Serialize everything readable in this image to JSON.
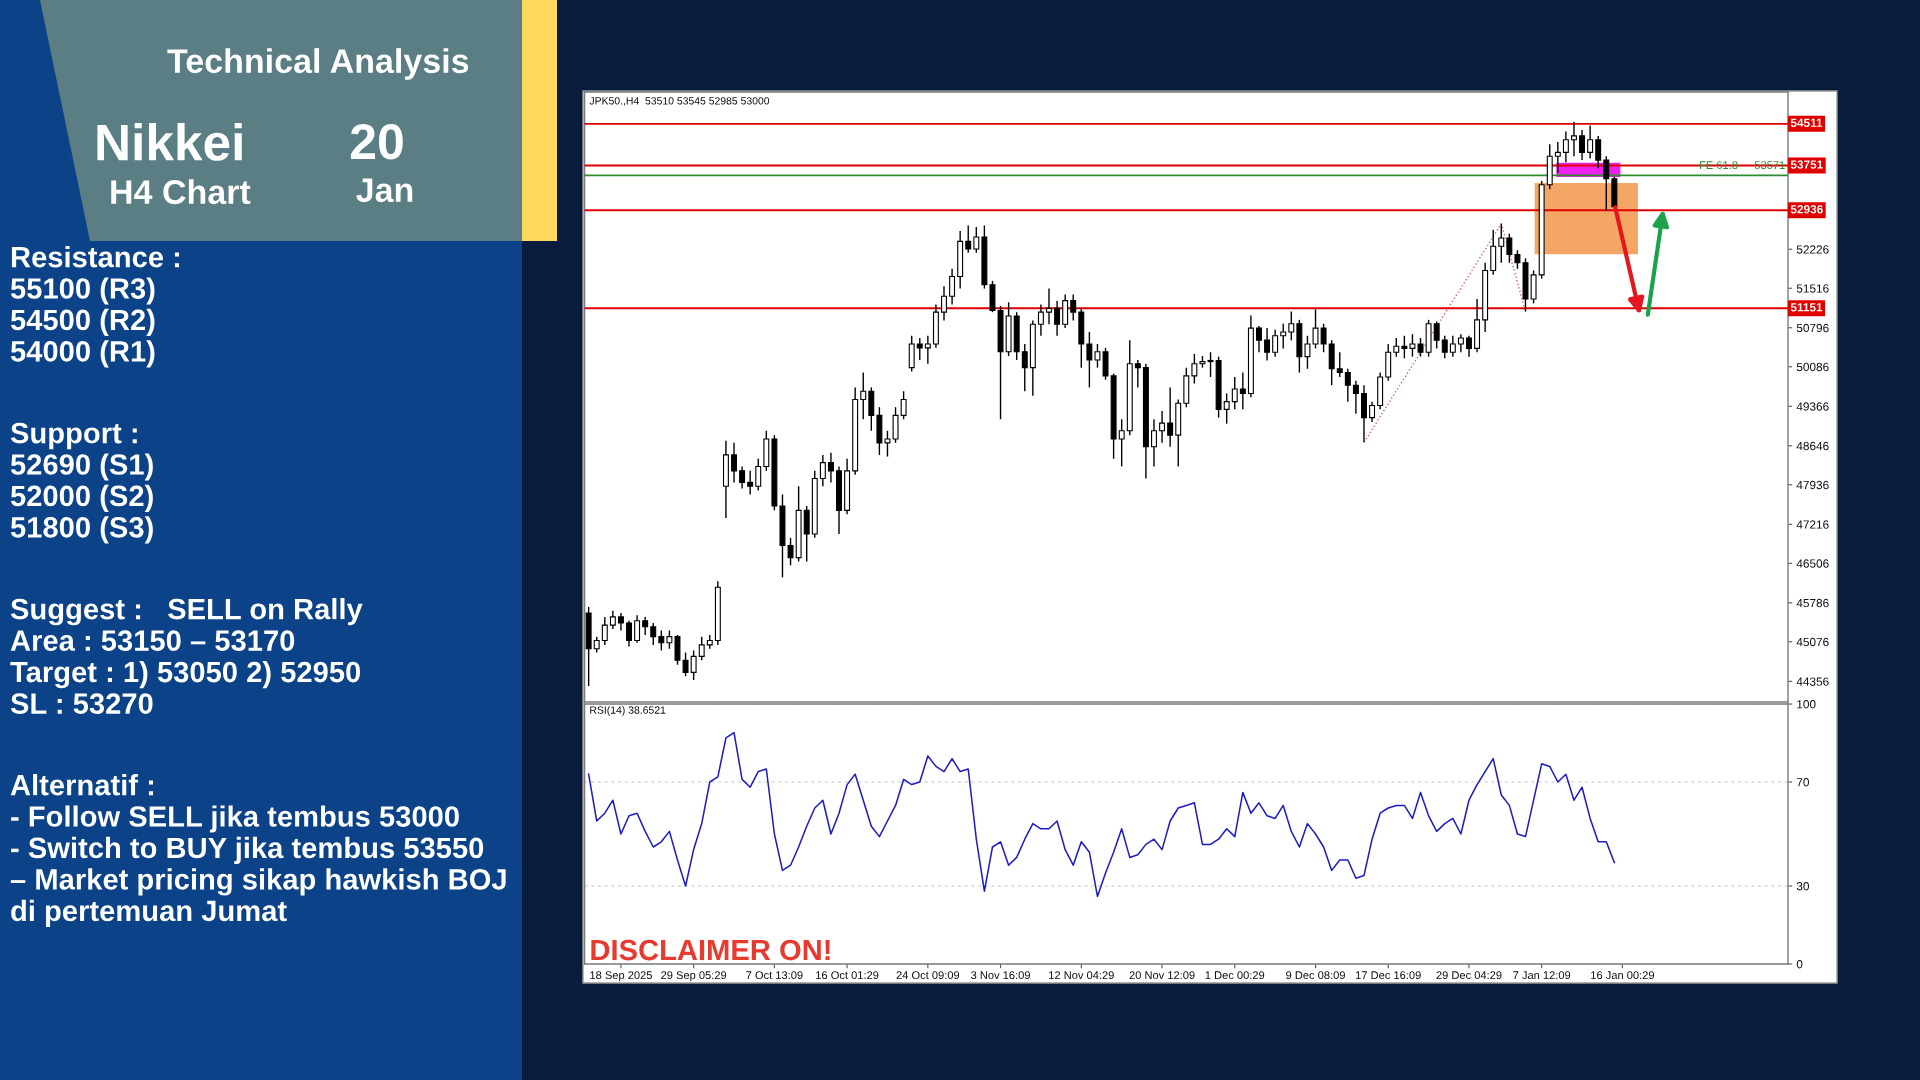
{
  "chart_data": [
    {
      "type": "other",
      "title": "Technical Analysis",
      "annotations": [
        "Nikkei",
        "H4 Chart",
        "20",
        "Jan",
        "Resistance :\n55100 (R3)\n54500 (R2)\n54000 (R1)",
        "Support :\n52690 (S1)\n52000 (S2)\n51800 (S3)",
        "Suggest :   SELL on Rally\nArea : 53150 – 53170\nTarget : 1) 53050 2) 52950\nSL : 53270",
        "Alternatif :\n- Follow SELL jika tembus 53000\n- Switch to BUY jika tembus 53550\n– Market pricing sikap hawkish BOJ\ndi pertemuan Jumat"
      ]
    },
    {
      "type": "candlestick",
      "title": "JPK50.,H4  53510 53545 52985 53000",
      "categories": [
        null,
        null,
        null,
        null,
        null,
        null,
        null,
        null,
        null,
        null,
        null,
        null,
        null,
        null,
        null,
        null,
        null,
        null,
        null,
        null,
        null,
        null,
        null,
        null,
        null,
        null,
        null,
        null,
        null,
        null,
        null,
        null,
        null,
        null,
        null,
        null,
        null,
        null,
        null,
        null,
        null,
        null,
        null,
        null,
        null,
        null,
        null,
        null,
        null,
        null,
        null,
        null,
        null,
        null,
        null,
        null,
        null,
        null,
        null,
        null,
        null,
        null,
        null,
        null,
        null,
        null,
        null,
        null,
        null,
        null,
        null,
        null,
        null,
        null,
        null,
        null,
        null,
        null,
        null,
        null,
        null,
        null,
        null,
        null,
        null,
        null,
        null,
        null,
        null,
        null,
        null,
        null,
        null,
        null,
        null,
        null,
        null,
        null,
        null,
        null,
        null,
        null,
        null,
        null,
        null,
        null,
        null,
        null,
        null,
        null,
        null,
        null,
        null,
        null,
        null,
        null,
        null,
        null,
        null,
        null,
        null,
        null,
        null,
        null,
        null,
        null,
        null,
        null,
        null,
        null,
        null,
        null,
        null,
        null,
        null,
        null,
        null,
        null,
        null,
        null,
        null,
        null,
        null,
        null,
        null,
        null,
        null,
        null,
        null
      ],
      "ohlc": [
        [
          45600,
          45710,
          44270,
          44950
        ],
        [
          44950,
          45170,
          44880,
          45100
        ],
        [
          45100,
          45530,
          45020,
          45380
        ],
        [
          45380,
          45640,
          45310,
          45530
        ],
        [
          45530,
          45600,
          45280,
          45420
        ],
        [
          45420,
          45460,
          44990,
          45100
        ],
        [
          45100,
          45560,
          45060,
          45460
        ],
        [
          45460,
          45530,
          45200,
          45350
        ],
        [
          45350,
          45420,
          45020,
          45170
        ],
        [
          45170,
          45280,
          44920,
          45060
        ],
        [
          45060,
          45280,
          44950,
          45170
        ],
        [
          45170,
          45200,
          44660,
          44740
        ],
        [
          44740,
          44880,
          44450,
          44520
        ],
        [
          44520,
          44920,
          44380,
          44810
        ],
        [
          44810,
          45170,
          44740,
          45020
        ],
        [
          45020,
          45200,
          44950,
          45100
        ],
        [
          45100,
          46180,
          45020,
          46070
        ],
        [
          47910,
          48740,
          47330,
          48480
        ],
        [
          48480,
          48700,
          47980,
          48190
        ],
        [
          48190,
          48270,
          47870,
          47980
        ],
        [
          47980,
          48190,
          47760,
          47910
        ],
        [
          47910,
          48410,
          47830,
          48270
        ],
        [
          48270,
          48920,
          48190,
          48770
        ],
        [
          48770,
          48840,
          47470,
          47550
        ],
        [
          47550,
          47760,
          46250,
          46830
        ],
        [
          46830,
          46970,
          46470,
          46610
        ],
        [
          46610,
          47910,
          46540,
          47470
        ],
        [
          47470,
          47550,
          46540,
          47040
        ],
        [
          47040,
          48190,
          46970,
          48050
        ],
        [
          48050,
          48480,
          47910,
          48340
        ],
        [
          48340,
          48520,
          47980,
          48190
        ],
        [
          48190,
          48270,
          47040,
          47470
        ],
        [
          47470,
          48410,
          47400,
          48190
        ],
        [
          48190,
          49710,
          48120,
          49490
        ],
        [
          49490,
          49980,
          49130,
          49640
        ],
        [
          49640,
          49710,
          48920,
          49200
        ],
        [
          49200,
          49350,
          48480,
          48700
        ],
        [
          48700,
          48920,
          48450,
          48770
        ],
        [
          48770,
          49350,
          48700,
          49200
        ],
        [
          49200,
          49640,
          49130,
          49490
        ],
        [
          50070,
          50650,
          50000,
          50500
        ],
        [
          50500,
          50610,
          50210,
          50430
        ],
        [
          50430,
          50650,
          50140,
          50500
        ],
        [
          50500,
          51220,
          50430,
          51080
        ],
        [
          51080,
          51550,
          50930,
          51370
        ],
        [
          51370,
          51870,
          51220,
          51730
        ],
        [
          51730,
          52560,
          51510,
          52370
        ],
        [
          52370,
          52660,
          52160,
          52230
        ],
        [
          52230,
          52630,
          52160,
          52450
        ],
        [
          52450,
          52660,
          51510,
          51580
        ],
        [
          51580,
          51650,
          51080,
          51110
        ],
        [
          51110,
          51190,
          49130,
          50360
        ],
        [
          50360,
          51260,
          50280,
          51010
        ],
        [
          51010,
          51080,
          50210,
          50360
        ],
        [
          50360,
          50500,
          49640,
          50070
        ],
        [
          50070,
          50930,
          49560,
          50860
        ],
        [
          50860,
          51220,
          50650,
          51080
        ],
        [
          51080,
          51510,
          50860,
          51150
        ],
        [
          51150,
          51290,
          50650,
          50860
        ],
        [
          50860,
          51400,
          50790,
          51290
        ],
        [
          51290,
          51400,
          50930,
          51080
        ],
        [
          51080,
          51150,
          50070,
          50500
        ],
        [
          50500,
          50720,
          49710,
          50210
        ],
        [
          50210,
          50500,
          50070,
          50360
        ],
        [
          50360,
          50430,
          49850,
          49920
        ],
        [
          49920,
          49960,
          48410,
          48770
        ],
        [
          48770,
          49130,
          48270,
          48920
        ],
        [
          48920,
          50570,
          48840,
          50140
        ],
        [
          50140,
          50210,
          49710,
          50070
        ],
        [
          50070,
          50140,
          48050,
          48630
        ],
        [
          48630,
          49130,
          48270,
          48920
        ],
        [
          48920,
          49280,
          48700,
          49060
        ],
        [
          49060,
          49710,
          48630,
          48840
        ],
        [
          48840,
          49490,
          48270,
          49420
        ],
        [
          49420,
          50070,
          49350,
          49920
        ],
        [
          49920,
          50320,
          49780,
          50140
        ],
        [
          50140,
          50280,
          50070,
          50180
        ],
        [
          50180,
          50350,
          49900,
          50200
        ],
        [
          50200,
          50270,
          49160,
          49310
        ],
        [
          49310,
          49600,
          49050,
          49450
        ],
        [
          49450,
          49900,
          49310,
          49680
        ],
        [
          49680,
          49980,
          49310,
          49600
        ],
        [
          49600,
          51020,
          49530,
          50790
        ],
        [
          50790,
          50830,
          50350,
          50570
        ],
        [
          50570,
          50790,
          50200,
          50350
        ],
        [
          50350,
          50760,
          50270,
          50650
        ],
        [
          50650,
          50870,
          50420,
          50720
        ],
        [
          50720,
          51090,
          50570,
          50870
        ],
        [
          50870,
          50940,
          49980,
          50270
        ],
        [
          50270,
          50650,
          50050,
          50500
        ],
        [
          50500,
          51130,
          50420,
          50790
        ],
        [
          50790,
          50870,
          50350,
          50500
        ],
        [
          50500,
          50570,
          49750,
          50050
        ],
        [
          50050,
          50350,
          49900,
          49980
        ],
        [
          49980,
          50050,
          49450,
          49750
        ],
        [
          49750,
          49830,
          49230,
          49600
        ],
        [
          49600,
          49750,
          48710,
          49160
        ],
        [
          49160,
          49450,
          49080,
          49380
        ],
        [
          49380,
          49980,
          49310,
          49900
        ],
        [
          49900,
          50500,
          49830,
          50350
        ],
        [
          50350,
          50610,
          50270,
          50460
        ],
        [
          50460,
          50650,
          50240,
          50420
        ],
        [
          50420,
          50680,
          50270,
          50500
        ],
        [
          50500,
          50610,
          50270,
          50350
        ],
        [
          50350,
          50940,
          50270,
          50870
        ],
        [
          50870,
          50910,
          50420,
          50570
        ],
        [
          50570,
          50650,
          50240,
          50350
        ],
        [
          50350,
          50650,
          50270,
          50500
        ],
        [
          50500,
          50680,
          50350,
          50610
        ],
        [
          50610,
          50650,
          50270,
          50420
        ],
        [
          50420,
          51320,
          50350,
          50940
        ],
        [
          50940,
          51980,
          50720,
          51840
        ],
        [
          51840,
          52580,
          51760,
          52280
        ],
        [
          52280,
          52690,
          51980,
          52430
        ],
        [
          52430,
          52510,
          51980,
          52130
        ],
        [
          52130,
          52210,
          51870,
          51980
        ],
        [
          51980,
          52060,
          51090,
          51320
        ],
        [
          51320,
          51840,
          51240,
          51760
        ],
        [
          51760,
          53470,
          51690,
          53400
        ],
        [
          53400,
          54140,
          53320,
          53920
        ],
        [
          53920,
          54180,
          53620,
          53990
        ],
        [
          53990,
          54370,
          53810,
          54220
        ],
        [
          54220,
          54550,
          53920,
          54290
        ],
        [
          54290,
          54400,
          53850,
          53990
        ],
        [
          53990,
          54480,
          53880,
          54220
        ],
        [
          54220,
          54290,
          53700,
          53850
        ],
        [
          53850,
          53920,
          52930,
          53510
        ],
        [
          53510,
          53545,
          52985,
          53000
        ],
        null,
        null,
        null,
        null,
        null,
        null,
        null,
        null,
        null,
        null,
        null,
        null,
        null,
        null,
        null,
        null,
        null,
        null,
        null,
        null,
        null
      ],
      "series": [
        {
          "type": "line",
          "color": "#e06060",
          "line_style": "dotted",
          "values": [
            null,
            null,
            null,
            null,
            null,
            null,
            null,
            null,
            null,
            null,
            null,
            null,
            null,
            null,
            null,
            null,
            null,
            null,
            null,
            null,
            null,
            null,
            null,
            null,
            null,
            null,
            null,
            null,
            null,
            null,
            null,
            null,
            null,
            null,
            null,
            null,
            null,
            null,
            null,
            null,
            null,
            null,
            null,
            null,
            null,
            null,
            null,
            null,
            null,
            null,
            null,
            null,
            null,
            null,
            null,
            null,
            null,
            null,
            null,
            null,
            null,
            null,
            null,
            null,
            null,
            null,
            null,
            null,
            null,
            null,
            null,
            null,
            null,
            null,
            null,
            null,
            null,
            null,
            null,
            null,
            null,
            null,
            null,
            null,
            null,
            null,
            null,
            null,
            null,
            null,
            null,
            null,
            null,
            null,
            null,
            null,
            48710,
            48940,
            49180,
            49410,
            49650,
            49880,
            50110,
            50350,
            50580,
            50820,
            51050,
            51290,
            51520,
            51750,
            51990,
            52220,
            52460,
            52690,
            52160,
            51620,
            51090,
            null,
            null,
            null,
            null,
            null,
            null,
            null,
            null,
            null,
            null,
            null,
            null,
            null,
            null,
            null,
            null,
            null,
            null,
            null,
            null,
            null,
            null,
            null,
            null,
            null,
            null,
            null,
            null,
            null,
            null,
            null,
            null
          ]
        }
      ],
      "ylim": [
        43980,
        55090
      ],
      "yticks": [
        52226,
        51516,
        50796,
        50086,
        49366,
        48646,
        47936,
        47216,
        46506,
        45786,
        45076,
        44356
      ],
      "tick_labels": "y",
      "ref_lines": [
        {
          "axis": "y",
          "value": 54511,
          "label": "54511",
          "color": "#e00000"
        },
        {
          "axis": "y",
          "value": 53751,
          "label": "53751",
          "color": "#e00000"
        },
        {
          "axis": "y",
          "value": 52936,
          "label": "52936",
          "color": "#e00000"
        },
        {
          "axis": "y",
          "value": 51151,
          "label": "51151",
          "color": "#e00000"
        },
        {
          "axis": "y",
          "value": 53571,
          "color": "#2e8b2e"
        }
      ],
      "annotations": [
        {
          "text": "FE 61.8",
          "y": 53571
        },
        {
          "text": "53571",
          "y": 53571
        }
      ]
    },
    {
      "type": "line",
      "title": "RSI(14) 38.6521",
      "color": "#1c1cc8",
      "categories": [
        null,
        null,
        null,
        null,
        "18 Sep 2025",
        null,
        null,
        null,
        null,
        null,
        null,
        null,
        null,
        "29 Sep 05:29",
        null,
        null,
        null,
        null,
        null,
        null,
        null,
        null,
        null,
        "7 Oct 13:09",
        null,
        null,
        null,
        null,
        null,
        null,
        null,
        null,
        "16 Oct 01:29",
        null,
        null,
        null,
        null,
        null,
        null,
        null,
        null,
        null,
        "24 Oct 09:09",
        null,
        null,
        null,
        null,
        null,
        null,
        null,
        null,
        "3 Nov 16:09",
        null,
        null,
        null,
        null,
        null,
        null,
        null,
        null,
        null,
        "12 Nov 04:29",
        null,
        null,
        null,
        null,
        null,
        null,
        null,
        null,
        null,
        "20 Nov 12:09",
        null,
        null,
        null,
        null,
        null,
        null,
        null,
        null,
        "1 Dec 00:29",
        null,
        null,
        null,
        null,
        null,
        null,
        null,
        null,
        null,
        "9 Dec 08:09",
        null,
        null,
        null,
        null,
        null,
        null,
        null,
        null,
        "17 Dec 16:09",
        null,
        null,
        null,
        null,
        null,
        null,
        null,
        null,
        null,
        "29 Dec 04:29",
        null,
        null,
        null,
        null,
        null,
        null,
        null,
        null,
        "7 Jan 12:09",
        null,
        null,
        null,
        null,
        null,
        null,
        null,
        null,
        null,
        "16 Jan 00:29",
        null,
        null,
        null,
        null,
        null,
        null,
        null,
        null,
        null,
        null,
        null,
        null,
        null,
        null,
        null,
        null,
        null,
        null,
        null,
        null
      ],
      "values": [
        73,
        55,
        58,
        63,
        50,
        57,
        58,
        51,
        45,
        47,
        51,
        40,
        30,
        44,
        54,
        70,
        72,
        87,
        89,
        71,
        68,
        74,
        75,
        50,
        36,
        38,
        45,
        53,
        60,
        63,
        50,
        58,
        69,
        73,
        63,
        53,
        49,
        55,
        61,
        71,
        69,
        70,
        80,
        76,
        74,
        79,
        74,
        75,
        48,
        28,
        45,
        47,
        38,
        41,
        48,
        54,
        52,
        52,
        55,
        44,
        38,
        47,
        43,
        26,
        35,
        43,
        52,
        41,
        42,
        46,
        48,
        44,
        55,
        60,
        61,
        62,
        46,
        46,
        48,
        52,
        49,
        66,
        58,
        62,
        57,
        56,
        61,
        51,
        45,
        54,
        50,
        45,
        36,
        40,
        40,
        33,
        34,
        48,
        58,
        60,
        61,
        61,
        56,
        66,
        57,
        51,
        54,
        56,
        50,
        63,
        69,
        74,
        79,
        65,
        61,
        50,
        49,
        63,
        77,
        76,
        70,
        73,
        63,
        68,
        56,
        47,
        47,
        39,
        null,
        null,
        null,
        null,
        null,
        null,
        null,
        null,
        null,
        null,
        null,
        null,
        null,
        null,
        null,
        null,
        null,
        null,
        null,
        null,
        null
      ],
      "ylim": [
        0,
        100
      ],
      "yticks": [
        100,
        70,
        30,
        0
      ],
      "grid": "y",
      "annotations": [
        "DISCLAIMER ON!"
      ]
    }
  ]
}
